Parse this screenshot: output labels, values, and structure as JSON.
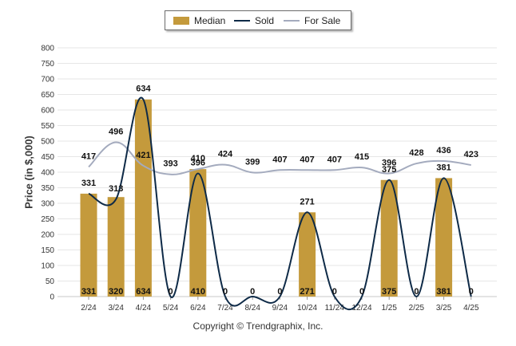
{
  "legend": {
    "median": "Median",
    "sold": "Sold",
    "for_sale": "For Sale"
  },
  "copyright": "Copyright © Trendgraphix, Inc.",
  "colors": {
    "median": "#c49a3c",
    "sold": "#0e2a47",
    "for_sale": "#a4abbe",
    "grid": "#e6e6e6"
  },
  "chart_data": {
    "type": "bar",
    "ylabel": "Price (in $,000)",
    "ylim": [
      0,
      800
    ],
    "yticks": [
      0,
      50,
      100,
      150,
      200,
      250,
      300,
      350,
      400,
      450,
      500,
      550,
      600,
      650,
      700,
      750,
      800
    ],
    "grid": true,
    "legend_position": "top-center",
    "categories": [
      "2/24",
      "3/24",
      "4/24",
      "5/24",
      "6/24",
      "7/24",
      "8/24",
      "9/24",
      "10/24",
      "11/24",
      "12/24",
      "1/25",
      "2/25",
      "3/25",
      "4/25"
    ],
    "series": [
      {
        "name": "Median",
        "type": "bar",
        "values": [
          331,
          320,
          634,
          0,
          410,
          0,
          0,
          0,
          271,
          0,
          0,
          375,
          0,
          381,
          0
        ]
      },
      {
        "name": "Sold",
        "type": "line",
        "values": [
          331,
          313,
          634,
          0,
          396,
          0,
          0,
          0,
          271,
          0,
          0,
          375,
          0,
          381,
          0
        ]
      },
      {
        "name": "For Sale",
        "type": "line",
        "values": [
          417,
          496,
          421,
          393,
          410,
          424,
          399,
          407,
          407,
          407,
          415,
          396,
          428,
          436,
          423
        ]
      }
    ]
  }
}
